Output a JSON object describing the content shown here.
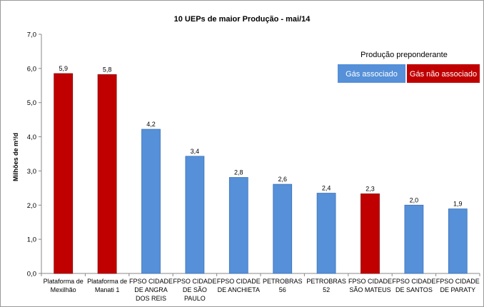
{
  "chart_data": {
    "type": "bar",
    "title": "10 UEPs de maior Produção - mai/14",
    "ylabel": "Milhões de m³/d",
    "xlabel": "",
    "ylim": [
      0,
      7
    ],
    "yticks": [
      "0,0",
      "1,0",
      "2,0",
      "3,0",
      "4,0",
      "5,0",
      "6,0",
      "7,0"
    ],
    "grid": false,
    "categories": [
      [
        "Plataforma de",
        "Mexilhão"
      ],
      [
        "Plataforma de",
        "Manati 1"
      ],
      [
        "FPSO CIDADE",
        "DE ANGRA",
        "DOS REIS"
      ],
      [
        "FPSO CIDADE",
        "DE SÃO",
        "PAULO"
      ],
      [
        "FPSO CIDADE",
        "DE ANCHIETA"
      ],
      [
        "PETROBRAS",
        "56"
      ],
      [
        "PETROBRAS",
        "52"
      ],
      [
        "FPSO CIDADE",
        "SÃO MATEUS"
      ],
      [
        "FPSO CIDADE",
        "DE SANTOS"
      ],
      [
        "FPSO CIDADE",
        "DE PARATY"
      ]
    ],
    "values": [
      5.85,
      5.82,
      4.22,
      3.43,
      2.81,
      2.61,
      2.35,
      2.33,
      2.0,
      1.89
    ],
    "value_labels": [
      "5,9",
      "5,8",
      "4,2",
      "3,4",
      "2,8",
      "2,6",
      "2,4",
      "2,3",
      "2,0",
      "1,9"
    ],
    "groups": [
      "nao",
      "nao",
      "assoc",
      "assoc",
      "assoc",
      "assoc",
      "assoc",
      "nao",
      "assoc",
      "assoc"
    ],
    "legend": {
      "title": "Produção preponderante",
      "placement": "top-right",
      "items": [
        {
          "key": "assoc",
          "label": "Gás associado",
          "color": "#5590d8"
        },
        {
          "key": "nao",
          "label": "Gás não associado",
          "color": "#c00000"
        }
      ]
    },
    "colors": {
      "assoc_fill": "#5590d8",
      "assoc_stroke": "#3e74b8",
      "nao_fill": "#c00000",
      "nao_stroke": "#8f0000",
      "axis": "#888888",
      "border": "#9a9a9a"
    }
  }
}
